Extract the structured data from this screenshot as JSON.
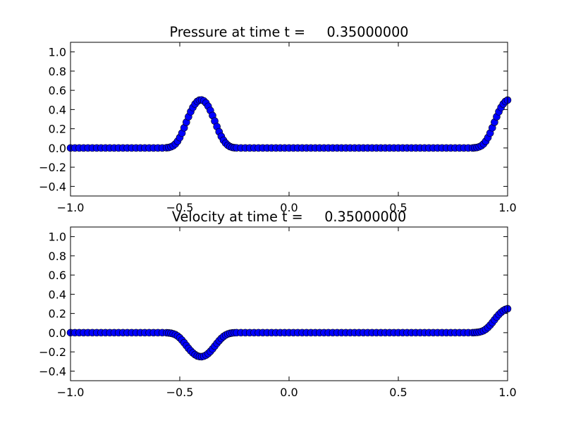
{
  "chart_data": [
    {
      "type": "scatter",
      "title": "Pressure at time t =     0.35000000",
      "xlabel": "",
      "ylabel": "",
      "xlim": [
        -1.0,
        1.0
      ],
      "ylim": [
        -0.5,
        1.1
      ],
      "x_ticks": [
        -1.0,
        -0.5,
        0.0,
        0.5,
        1.0
      ],
      "x_tick_labels": [
        "−1.0",
        "−0.5",
        "0.0",
        "0.5",
        "1.0"
      ],
      "y_ticks": [
        -0.4,
        -0.2,
        0.0,
        0.2,
        0.4,
        0.6,
        0.8,
        1.0
      ],
      "y_tick_labels": [
        "−0.4",
        "−0.2",
        "0.0",
        "0.2",
        "0.4",
        "0.6",
        "0.8",
        "1.0"
      ],
      "grid": false,
      "marker": "circle",
      "marker_color": "#0000ff",
      "series": [
        {
          "x": [
            -1.0,
            -0.98,
            -0.96,
            -0.94,
            -0.92,
            -0.9,
            -0.88,
            -0.86,
            -0.84,
            -0.82,
            -0.8,
            -0.78,
            -0.76,
            -0.74,
            -0.72,
            -0.7,
            -0.68,
            -0.66,
            -0.64,
            -0.62,
            -0.6,
            -0.58,
            -0.56,
            -0.55,
            -0.54,
            -0.53,
            -0.52,
            -0.51,
            -0.5,
            -0.49,
            -0.48,
            -0.47,
            -0.46,
            -0.45,
            -0.44,
            -0.43,
            -0.42,
            -0.41,
            -0.4,
            -0.39,
            -0.38,
            -0.37,
            -0.36,
            -0.35,
            -0.34,
            -0.33,
            -0.32,
            -0.31,
            -0.3,
            -0.29,
            -0.28,
            -0.27,
            -0.26,
            -0.25,
            -0.24,
            -0.22,
            -0.2,
            -0.18,
            -0.16,
            -0.14,
            -0.12,
            -0.1,
            -0.08,
            -0.06,
            -0.04,
            -0.02,
            0.0,
            0.02,
            0.04,
            0.06,
            0.08,
            0.1,
            0.12,
            0.14,
            0.16,
            0.18,
            0.2,
            0.22,
            0.24,
            0.26,
            0.28,
            0.3,
            0.32,
            0.34,
            0.36,
            0.38,
            0.4,
            0.42,
            0.44,
            0.46,
            0.48,
            0.5,
            0.52,
            0.54,
            0.56,
            0.58,
            0.6,
            0.62,
            0.64,
            0.66,
            0.68,
            0.7,
            0.72,
            0.74,
            0.76,
            0.78,
            0.8,
            0.82,
            0.84,
            0.85,
            0.86,
            0.87,
            0.88,
            0.89,
            0.9,
            0.91,
            0.92,
            0.93,
            0.94,
            0.95,
            0.96,
            0.97,
            0.98,
            0.99,
            1.0
          ],
          "y": [
            0,
            0,
            0,
            0,
            0,
            0,
            0,
            0,
            0,
            0,
            0,
            0,
            0,
            0,
            0,
            0,
            0,
            0,
            0,
            0,
            0,
            0,
            0.002,
            0.005,
            0.012,
            0.023,
            0.042,
            0.07,
            0.108,
            0.155,
            0.21,
            0.268,
            0.325,
            0.378,
            0.422,
            0.458,
            0.484,
            0.498,
            0.5,
            0.49,
            0.468,
            0.434,
            0.39,
            0.338,
            0.28,
            0.222,
            0.168,
            0.12,
            0.08,
            0.05,
            0.028,
            0.014,
            0.006,
            0.002,
            0.001,
            0,
            0,
            0,
            0,
            0,
            0,
            0,
            0,
            0,
            0,
            0,
            0,
            0,
            0,
            0,
            0,
            0,
            0,
            0,
            0,
            0,
            0,
            0,
            0,
            0,
            0,
            0,
            0,
            0,
            0,
            0,
            0,
            0,
            0,
            0,
            0,
            0,
            0,
            0,
            0,
            0,
            0,
            0,
            0,
            0,
            0,
            0,
            0,
            0,
            0,
            0,
            0,
            0,
            0,
            0.002,
            0.005,
            0.012,
            0.023,
            0.042,
            0.07,
            0.108,
            0.155,
            0.21,
            0.268,
            0.325,
            0.378,
            0.422,
            0.458,
            0.484,
            0.498
          ]
        }
      ]
    },
    {
      "type": "scatter",
      "title": "Velocity at time t =     0.35000000",
      "xlabel": "",
      "ylabel": "",
      "xlim": [
        -1.0,
        1.0
      ],
      "ylim": [
        -0.5,
        1.1
      ],
      "x_ticks": [
        -1.0,
        -0.5,
        0.0,
        0.5,
        1.0
      ],
      "x_tick_labels": [
        "−1.0",
        "−0.5",
        "0.0",
        "0.5",
        "1.0"
      ],
      "y_ticks": [
        -0.4,
        -0.2,
        0.0,
        0.2,
        0.4,
        0.6,
        0.8,
        1.0
      ],
      "y_tick_labels": [
        "−0.4",
        "−0.2",
        "0.0",
        "0.2",
        "0.4",
        "0.6",
        "0.8",
        "1.0"
      ],
      "grid": false,
      "marker": "circle",
      "marker_color": "#0000ff",
      "series": [
        {
          "x": [
            -1.0,
            -0.98,
            -0.96,
            -0.94,
            -0.92,
            -0.9,
            -0.88,
            -0.86,
            -0.84,
            -0.82,
            -0.8,
            -0.78,
            -0.76,
            -0.74,
            -0.72,
            -0.7,
            -0.68,
            -0.66,
            -0.64,
            -0.62,
            -0.6,
            -0.58,
            -0.56,
            -0.55,
            -0.54,
            -0.53,
            -0.52,
            -0.51,
            -0.5,
            -0.49,
            -0.48,
            -0.47,
            -0.46,
            -0.45,
            -0.44,
            -0.43,
            -0.42,
            -0.41,
            -0.4,
            -0.39,
            -0.38,
            -0.37,
            -0.36,
            -0.35,
            -0.34,
            -0.33,
            -0.32,
            -0.31,
            -0.3,
            -0.29,
            -0.28,
            -0.27,
            -0.26,
            -0.25,
            -0.24,
            -0.22,
            -0.2,
            -0.18,
            -0.16,
            -0.14,
            -0.12,
            -0.1,
            -0.08,
            -0.06,
            -0.04,
            -0.02,
            0.0,
            0.02,
            0.04,
            0.06,
            0.08,
            0.1,
            0.12,
            0.14,
            0.16,
            0.18,
            0.2,
            0.22,
            0.24,
            0.26,
            0.28,
            0.3,
            0.32,
            0.34,
            0.36,
            0.38,
            0.4,
            0.42,
            0.44,
            0.46,
            0.48,
            0.5,
            0.52,
            0.54,
            0.56,
            0.58,
            0.6,
            0.62,
            0.64,
            0.66,
            0.68,
            0.7,
            0.72,
            0.74,
            0.76,
            0.78,
            0.8,
            0.82,
            0.84,
            0.85,
            0.86,
            0.87,
            0.88,
            0.89,
            0.9,
            0.91,
            0.92,
            0.93,
            0.94,
            0.95,
            0.96,
            0.97,
            0.98,
            0.99,
            1.0
          ],
          "y": [
            0,
            0,
            0,
            0,
            0,
            0,
            0,
            0,
            0,
            0,
            0,
            0,
            0,
            0,
            0,
            0,
            0,
            0,
            0,
            0,
            0,
            0,
            -0.001,
            -0.003,
            -0.006,
            -0.012,
            -0.021,
            -0.035,
            -0.054,
            -0.078,
            -0.105,
            -0.134,
            -0.163,
            -0.189,
            -0.211,
            -0.229,
            -0.242,
            -0.249,
            -0.25,
            -0.245,
            -0.234,
            -0.217,
            -0.195,
            -0.169,
            -0.14,
            -0.111,
            -0.084,
            -0.06,
            -0.04,
            -0.025,
            -0.014,
            -0.007,
            -0.003,
            -0.001,
            0,
            0,
            0,
            0,
            0,
            0,
            0,
            0,
            0,
            0,
            0,
            0,
            0,
            0,
            0,
            0,
            0,
            0,
            0,
            0,
            0,
            0,
            0,
            0,
            0,
            0,
            0,
            0,
            0,
            0,
            0,
            0,
            0,
            0,
            0,
            0,
            0,
            0,
            0,
            0,
            0,
            0,
            0,
            0,
            0,
            0,
            0,
            0,
            0,
            0,
            0,
            0,
            0,
            0,
            0,
            0.001,
            0.003,
            0.006,
            0.012,
            0.021,
            0.035,
            0.054,
            0.078,
            0.105,
            0.134,
            0.163,
            0.189,
            0.211,
            0.229,
            0.242,
            0.249
          ]
        }
      ]
    }
  ]
}
